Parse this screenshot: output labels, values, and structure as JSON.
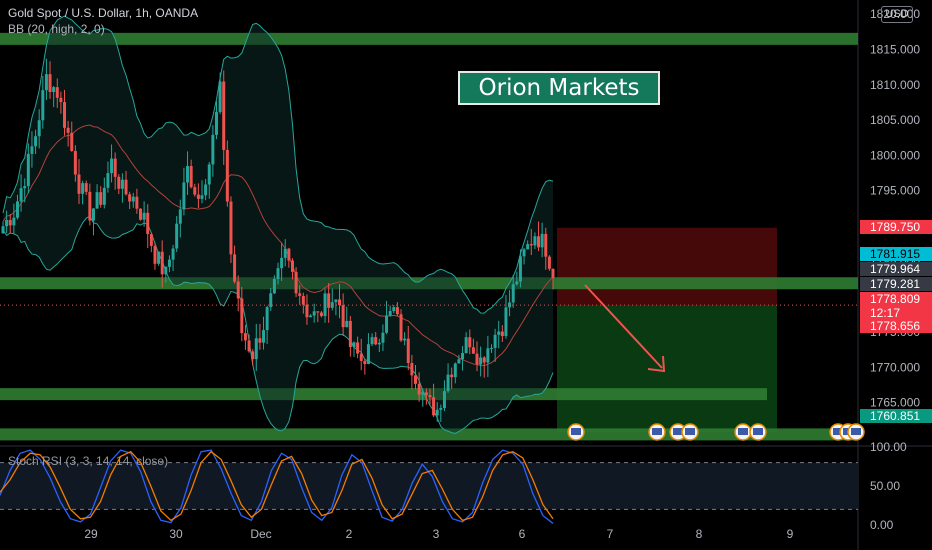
{
  "header": {
    "symbol_line": "Gold Spot / U.S. Dollar, 1h, OANDA",
    "indicator_line": "BB (20, high, 2, 0)",
    "currency_button": "USD"
  },
  "watermark": {
    "brand": "Orion Markets"
  },
  "colors": {
    "background": "#000000",
    "up_candle": "#26a69a",
    "down_candle": "#ef5350",
    "bb_band": "#26a69a",
    "bb_basis": "#b5403c",
    "zone_green": "#2e7d32",
    "risk_zone": "#4a0a0a",
    "reward_zone": "#0b3d12",
    "arrow": "#ef5350",
    "stoch_k": "#2962ff",
    "stoch_d": "#f57c00"
  },
  "chart_data": [
    {
      "type": "candlestick",
      "symbol": "Gold Spot / U.S. Dollar",
      "timeframe": "1h",
      "source": "OANDA",
      "ylim": [
        1759,
        1822
      ],
      "y_ticks": [
        1765.0,
        1770.0,
        1775.0,
        1780.0,
        1785.0,
        1790.0,
        1795.0,
        1800.0,
        1805.0,
        1810.0,
        1815.0,
        1820.0
      ],
      "y_tick_labels": [
        "1765.000",
        "1770.000",
        "1775.000",
        "1780.000",
        "1785.000",
        "1790.000",
        "1795.000",
        "1800.000",
        "1805.000",
        "1810.000",
        "1815.000",
        "1820.000"
      ],
      "x_ticks": [
        "29",
        "30",
        "Dec",
        "2",
        "3",
        "6",
        "7",
        "8",
        "9"
      ],
      "close_path": [
        1790,
        1792,
        1797,
        1803,
        1811,
        1809,
        1803,
        1796,
        1792,
        1794,
        1799,
        1795,
        1794,
        1791,
        1786,
        1783,
        1790,
        1798,
        1794,
        1799,
        1809,
        1786,
        1775,
        1772,
        1776,
        1781,
        1786,
        1782,
        1778,
        1777,
        1780,
        1779,
        1773,
        1771,
        1773,
        1776,
        1778,
        1773,
        1769,
        1765,
        1764,
        1769,
        1772,
        1774,
        1771,
        1774,
        1776,
        1781,
        1786,
        1789,
        1787,
        1782
      ],
      "price_labels": [
        {
          "text": "1789.750",
          "value": 1789.75,
          "kind": "stop"
        },
        {
          "text": "1781.915",
          "value": 1781.915,
          "kind": "level"
        },
        {
          "text": "1779.964",
          "value": 1779.964,
          "kind": "bb"
        },
        {
          "text": "1779.281",
          "value": 1779.281,
          "kind": "bb"
        },
        {
          "text": "1778.809",
          "value": 1778.809,
          "kind": "last"
        },
        {
          "text": "12:17",
          "value": null,
          "kind": "countdown"
        },
        {
          "text": "1778.656",
          "value": 1778.656,
          "kind": "last2"
        },
        {
          "text": "1760.851",
          "value": 1760.851,
          "kind": "target"
        }
      ],
      "horizontal_zones": [
        {
          "name": "resistance-top",
          "value": 1816.5
        },
        {
          "name": "resistance-mid",
          "value": 1781.9
        },
        {
          "name": "support-mid",
          "value": 1766.2
        },
        {
          "name": "support-low",
          "value": 1760.5
        }
      ],
      "position": {
        "entry": 1778.8,
        "stop": 1789.75,
        "target": 1760.851
      }
    },
    {
      "type": "line",
      "indicator": "Stoch RSI (3, 3, 14, 14, close)",
      "ylim": [
        0,
        100
      ],
      "y_ticks": [
        0,
        50,
        100
      ],
      "y_tick_labels": [
        "0.00",
        "50.00",
        "100.00"
      ],
      "bands": [
        80,
        20
      ],
      "series": [
        {
          "key": "k",
          "values": [
            38,
            70,
            92,
            96,
            84,
            60,
            30,
            8,
            4,
            14,
            48,
            82,
            96,
            92,
            68,
            30,
            6,
            3,
            22,
            64,
            94,
            96,
            72,
            40,
            12,
            6,
            30,
            70,
            92,
            84,
            48,
            16,
            6,
            22,
            64,
            90,
            80,
            44,
            10,
            5,
            20,
            54,
            78,
            62,
            30,
            8,
            4,
            16,
            54,
            84,
            96,
            92,
            78,
            40,
            12,
            2
          ]
        },
        {
          "key": "d",
          "values": [
            42,
            58,
            80,
            92,
            90,
            74,
            48,
            20,
            8,
            10,
            30,
            64,
            88,
            94,
            80,
            50,
            18,
            6,
            14,
            44,
            80,
            94,
            84,
            56,
            26,
            10,
            20,
            52,
            82,
            88,
            66,
            32,
            12,
            16,
            44,
            78,
            84,
            60,
            26,
            8,
            14,
            40,
            66,
            70,
            46,
            20,
            6,
            10,
            36,
            70,
            90,
            94,
            86,
            58,
            26,
            8
          ]
        }
      ]
    }
  ],
  "stoch_label": "Stoch RSI (3, 3, 14, 14, close)"
}
